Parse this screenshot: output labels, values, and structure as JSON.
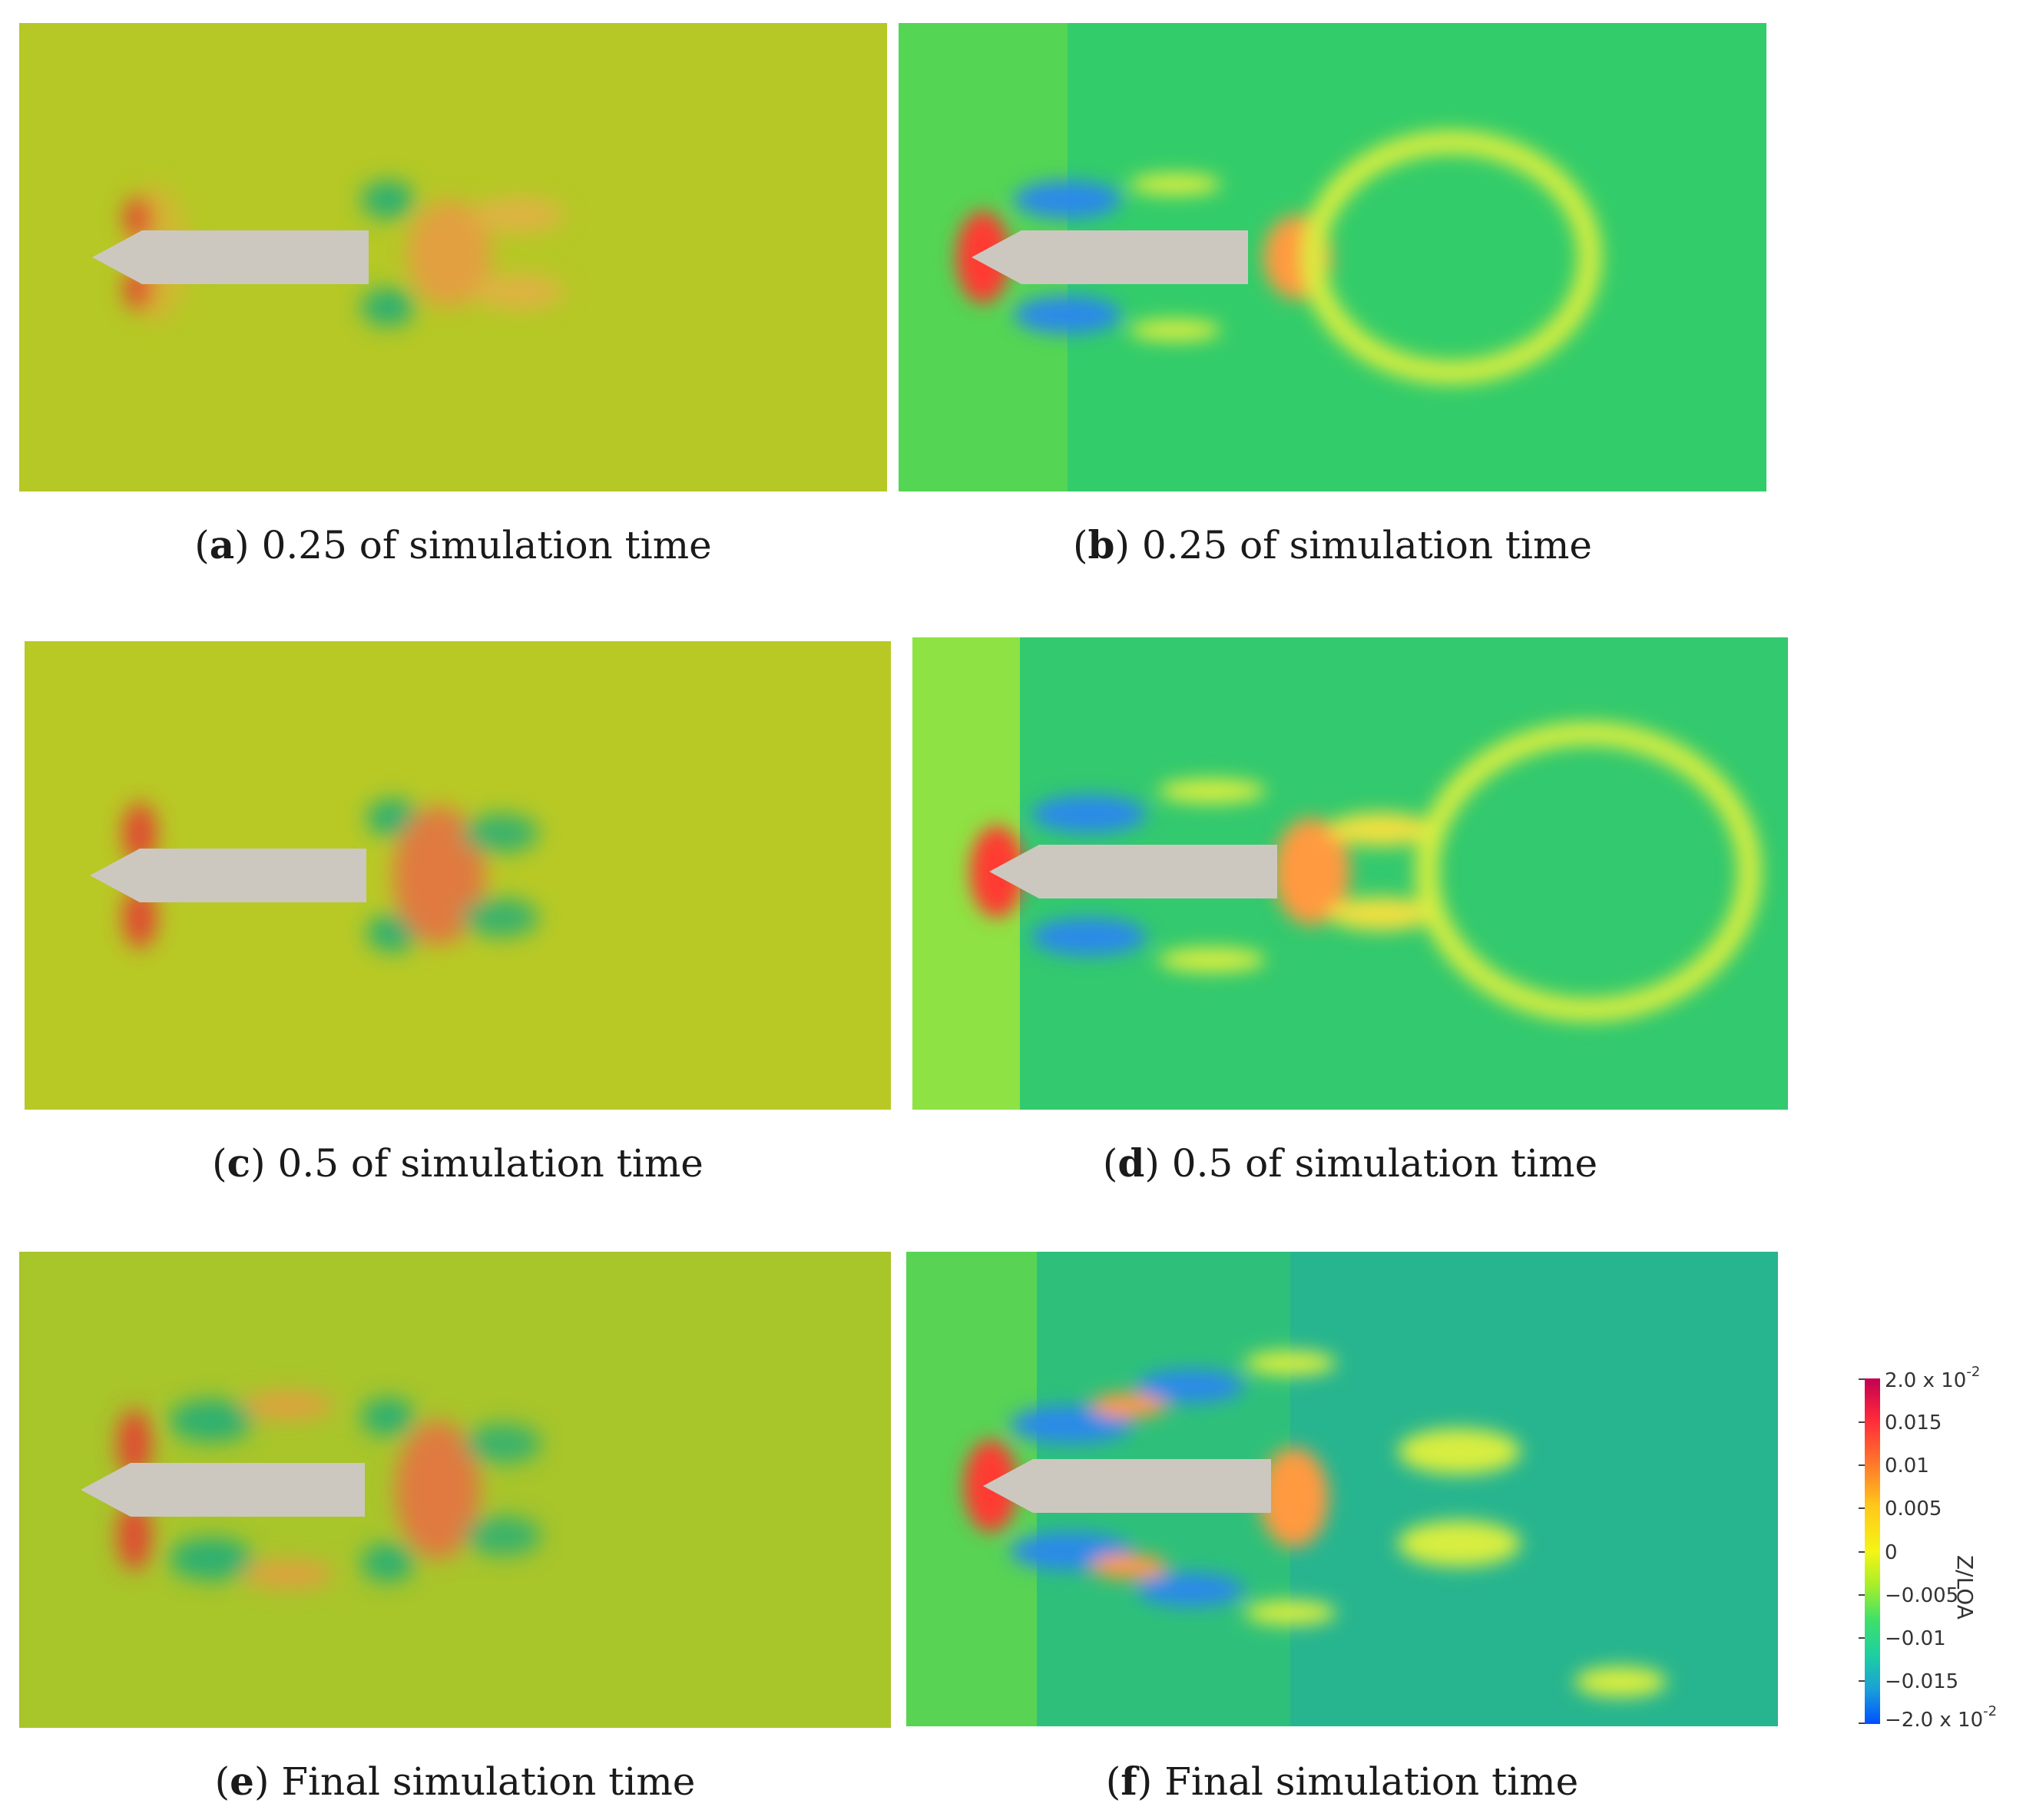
{
  "captions": [
    {
      "letter": "a",
      "text": " 0.25 of simulation time"
    },
    {
      "letter": "b",
      "text": " 0.25 of simulation time"
    },
    {
      "letter": "c",
      "text": " 0.5 of simulation time"
    },
    {
      "letter": "d",
      "text": " 0.5 of simulation time"
    },
    {
      "letter": "e",
      "text": " Final simulation time"
    },
    {
      "letter": "f",
      "text": " Final simulation time"
    }
  ],
  "colorbar": {
    "title": "Z/LOA",
    "labels": {
      "max_base": "2.0 x 10",
      "max_exp": "-2",
      "l1": "0.015",
      "l2": "0.01",
      "l3": "0.005",
      "l4": "0",
      "l5": "−0.005",
      "l6": "−0.01",
      "l7": "−0.015",
      "min_base": "−2.0 x 10",
      "min_exp": "-2"
    },
    "colors": [
      "#c40052",
      "#ff2a3a",
      "#ff7a2a",
      "#ffc81a",
      "#f5f515",
      "#a6ee2a",
      "#3ee06a",
      "#1ecfa0",
      "#1aa0d8",
      "#0050ff"
    ]
  }
}
